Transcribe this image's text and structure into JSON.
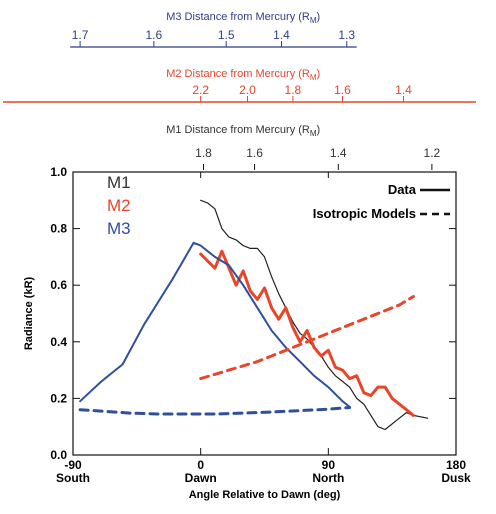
{
  "chart_data": {
    "type": "line",
    "colors": {
      "M1": "#222222",
      "M2": "#e8452a",
      "M3": "#2f4f9e",
      "axis": "#111111"
    },
    "xlim": [
      -90,
      180
    ],
    "ylim": [
      0.0,
      1.0
    ],
    "xlabel": "Angle Relative to Dawn (deg)",
    "ylabel": "Radiance (kR)",
    "x_ticks": [
      {
        "value": -90,
        "line1": "-90",
        "line2": "South"
      },
      {
        "value": 0,
        "line1": "0",
        "line2": "Dawn"
      },
      {
        "value": 90,
        "line1": "90",
        "line2": "North"
      },
      {
        "value": 180,
        "line1": "180",
        "line2": "Dusk"
      }
    ],
    "y_ticks": [
      "0.0",
      "0.2",
      "0.4",
      "0.6",
      "0.8",
      "1.0"
    ],
    "y_tick_values": [
      0.0,
      0.2,
      0.4,
      0.6,
      0.8,
      1.0
    ],
    "top_axes": [
      {
        "key": "M3",
        "title": "M3 Distance from Mercury (R",
        "sub": "M",
        "close": ")",
        "ticks": [
          {
            "label": "1.7",
            "x": -85
          },
          {
            "label": "1.6",
            "x": -33
          },
          {
            "label": "1.5",
            "x": 18
          },
          {
            "label": "1.4",
            "x": 57
          },
          {
            "label": "1.3",
            "x": 103
          }
        ]
      },
      {
        "key": "M2",
        "title": "M2 Distance from Mercury (R",
        "sub": "M",
        "close": ")",
        "ticks": [
          {
            "label": "2.2",
            "x": 0
          },
          {
            "label": "2.0",
            "x": 33
          },
          {
            "label": "1.8",
            "x": 65
          },
          {
            "label": "1.6",
            "x": 100
          },
          {
            "label": "1.4",
            "x": 143
          }
        ]
      },
      {
        "key": "M1",
        "title": "M1 Distance from Mercury (R",
        "sub": "M",
        "close": ")",
        "ticks": [
          {
            "label": "1.8",
            "x": 2
          },
          {
            "label": "1.6",
            "x": 38
          },
          {
            "label": "1.4",
            "x": 97
          },
          {
            "label": "1.2",
            "x": 163
          }
        ]
      }
    ],
    "series_labels": [
      "M1",
      "M2",
      "M3"
    ],
    "legend": {
      "data_label": "Data",
      "model_label": "Isotropic Models",
      "placement": "top-right"
    },
    "series": [
      {
        "name": "M1",
        "kind": "data",
        "points": [
          [
            0,
            0.9
          ],
          [
            5,
            0.89
          ],
          [
            10,
            0.87
          ],
          [
            15,
            0.8
          ],
          [
            20,
            0.77
          ],
          [
            25,
            0.76
          ],
          [
            30,
            0.74
          ],
          [
            35,
            0.73
          ],
          [
            40,
            0.73
          ],
          [
            45,
            0.7
          ],
          [
            50,
            0.63
          ],
          [
            55,
            0.57
          ],
          [
            60,
            0.52
          ],
          [
            65,
            0.47
          ],
          [
            70,
            0.43
          ],
          [
            75,
            0.41
          ],
          [
            80,
            0.38
          ],
          [
            85,
            0.35
          ],
          [
            90,
            0.31
          ],
          [
            95,
            0.28
          ],
          [
            100,
            0.26
          ],
          [
            105,
            0.24
          ],
          [
            110,
            0.2
          ],
          [
            115,
            0.18
          ],
          [
            120,
            0.14
          ],
          [
            125,
            0.1
          ],
          [
            130,
            0.09
          ],
          [
            135,
            0.11
          ],
          [
            140,
            0.13
          ],
          [
            145,
            0.15
          ],
          [
            150,
            0.14
          ],
          [
            160,
            0.13
          ]
        ]
      },
      {
        "name": "M2",
        "kind": "data",
        "points": [
          [
            0,
            0.71
          ],
          [
            10,
            0.66
          ],
          [
            15,
            0.72
          ],
          [
            20,
            0.66
          ],
          [
            25,
            0.6
          ],
          [
            30,
            0.65
          ],
          [
            35,
            0.58
          ],
          [
            40,
            0.55
          ],
          [
            45,
            0.59
          ],
          [
            50,
            0.52
          ],
          [
            55,
            0.48
          ],
          [
            60,
            0.52
          ],
          [
            65,
            0.45
          ],
          [
            70,
            0.4
          ],
          [
            75,
            0.44
          ],
          [
            80,
            0.38
          ],
          [
            85,
            0.35
          ],
          [
            90,
            0.37
          ],
          [
            95,
            0.31
          ],
          [
            100,
            0.3
          ],
          [
            105,
            0.27
          ],
          [
            110,
            0.28
          ],
          [
            115,
            0.22
          ],
          [
            120,
            0.21
          ],
          [
            125,
            0.24
          ],
          [
            130,
            0.24
          ],
          [
            135,
            0.2
          ],
          [
            140,
            0.18
          ],
          [
            145,
            0.16
          ],
          [
            150,
            0.14
          ]
        ]
      },
      {
        "name": "M3",
        "kind": "data",
        "points": [
          [
            -85,
            0.19
          ],
          [
            -70,
            0.26
          ],
          [
            -55,
            0.32
          ],
          [
            -40,
            0.46
          ],
          [
            -20,
            0.62
          ],
          [
            -5,
            0.75
          ],
          [
            0,
            0.74
          ],
          [
            10,
            0.7
          ],
          [
            20,
            0.67
          ],
          [
            30,
            0.6
          ],
          [
            40,
            0.52
          ],
          [
            50,
            0.44
          ],
          [
            60,
            0.38
          ],
          [
            70,
            0.33
          ],
          [
            80,
            0.28
          ],
          [
            90,
            0.24
          ],
          [
            100,
            0.19
          ],
          [
            105,
            0.17
          ]
        ]
      },
      {
        "name": "M2",
        "kind": "model",
        "points": [
          [
            0,
            0.27
          ],
          [
            20,
            0.3
          ],
          [
            40,
            0.33
          ],
          [
            60,
            0.37
          ],
          [
            80,
            0.41
          ],
          [
            100,
            0.45
          ],
          [
            120,
            0.49
          ],
          [
            140,
            0.53
          ],
          [
            150,
            0.56
          ]
        ]
      },
      {
        "name": "M3",
        "kind": "model",
        "points": [
          [
            -85,
            0.16
          ],
          [
            -70,
            0.155
          ],
          [
            -50,
            0.148
          ],
          [
            -30,
            0.145
          ],
          [
            -10,
            0.145
          ],
          [
            10,
            0.145
          ],
          [
            30,
            0.148
          ],
          [
            50,
            0.152
          ],
          [
            70,
            0.157
          ],
          [
            90,
            0.162
          ],
          [
            105,
            0.168
          ]
        ]
      }
    ]
  }
}
